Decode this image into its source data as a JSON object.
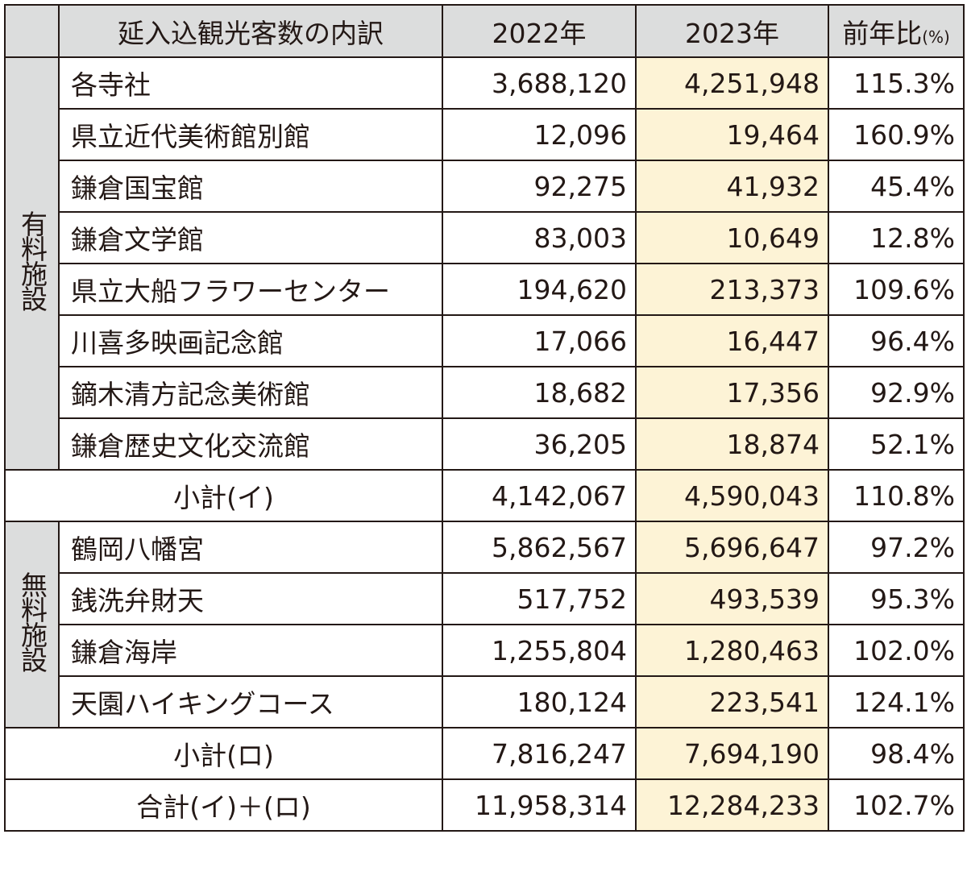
{
  "header": {
    "category": "延入込観光客数の内訳",
    "y2022": "2022年",
    "y2023": "2023年",
    "ratio": "前年比",
    "ratio_unit": "(%)"
  },
  "colors": {
    "header_bg": "#dcdddd",
    "highlight_2023": "#fdf3d6",
    "border": "#231815"
  },
  "groups": [
    {
      "label": "有料施設",
      "rows": [
        {
          "name": "各寺社",
          "y2022": "3,688,120",
          "y2023": "4,251,948",
          "ratio": "115.3%"
        },
        {
          "name": "県立近代美術館別館",
          "y2022": "12,096",
          "y2023": "19,464",
          "ratio": "160.9%"
        },
        {
          "name": "鎌倉国宝館",
          "y2022": "92,275",
          "y2023": "41,932",
          "ratio": "45.4%"
        },
        {
          "name": "鎌倉文学館",
          "y2022": "83,003",
          "y2023": "10,649",
          "ratio": "12.8%"
        },
        {
          "name": "県立大船フラワーセンター",
          "y2022": "194,620",
          "y2023": "213,373",
          "ratio": "109.6%"
        },
        {
          "name": "川喜多映画記念館",
          "y2022": "17,066",
          "y2023": "16,447",
          "ratio": "96.4%"
        },
        {
          "name": "鏑木清方記念美術館",
          "y2022": "18,682",
          "y2023": "17,356",
          "ratio": "92.9%"
        },
        {
          "name": "鎌倉歴史文化交流館",
          "y2022": "36,205",
          "y2023": "18,874",
          "ratio": "52.1%"
        }
      ],
      "subtotal": {
        "name": "小計(イ)",
        "y2022": "4,142,067",
        "y2023": "4,590,043",
        "ratio": "110.8%"
      }
    },
    {
      "label": "無料施設",
      "rows": [
        {
          "name": "鶴岡八幡宮",
          "y2022": "5,862,567",
          "y2023": "5,696,647",
          "ratio": "97.2%"
        },
        {
          "name": "銭洗弁財天",
          "y2022": "517,752",
          "y2023": "493,539",
          "ratio": "95.3%"
        },
        {
          "name": "鎌倉海岸",
          "y2022": "1,255,804",
          "y2023": "1,280,463",
          "ratio": "102.0%"
        },
        {
          "name": "天園ハイキングコース",
          "y2022": "180,124",
          "y2023": "223,541",
          "ratio": "124.1%"
        }
      ],
      "subtotal": {
        "name": "小計(ロ)",
        "y2022": "7,816,247",
        "y2023": "7,694,190",
        "ratio": "98.4%"
      }
    }
  ],
  "total": {
    "name": "合計(イ)＋(ロ)",
    "y2022": "11,958,314",
    "y2023": "12,284,233",
    "ratio": "102.7%"
  }
}
